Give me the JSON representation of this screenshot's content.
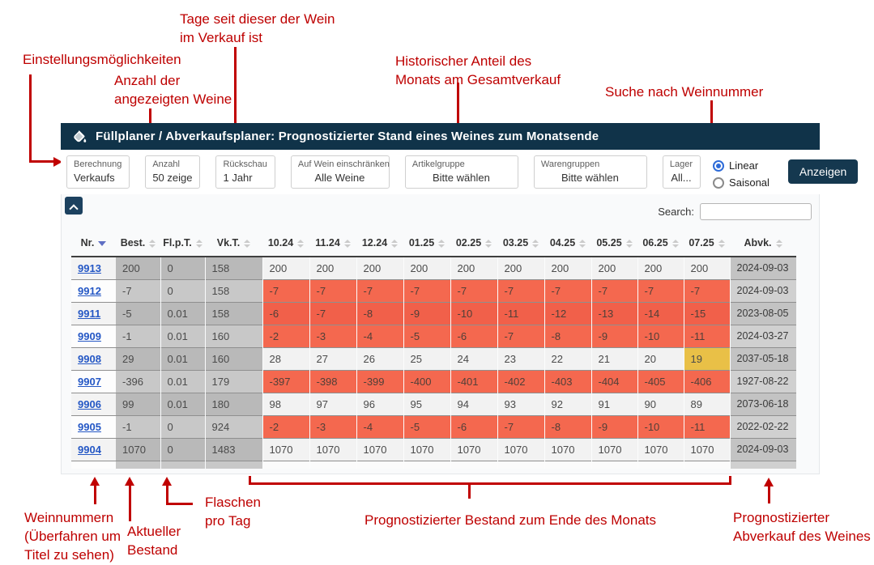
{
  "annotations": {
    "color": "#c00000",
    "tage": {
      "lines": [
        "Tage seit dieser der Wein",
        "im Verkauf ist"
      ]
    },
    "einstellungen": {
      "lines": [
        "Einstellungsmöglichkeiten"
      ]
    },
    "anzahl": {
      "lines": [
        "Anzahl der",
        "angezeigten Weine"
      ]
    },
    "historisch": {
      "lines": [
        "Historischer Anteil des",
        "Monats am Gesamtverkauf"
      ]
    },
    "suche": {
      "lines": [
        "Suche nach Weinnummer"
      ]
    },
    "weinnummern": {
      "lines": [
        "Weinnummern",
        "(Überfahren um",
        "Titel zu sehen)"
      ]
    },
    "aktueller": {
      "lines": [
        "Aktueller",
        "Bestand"
      ]
    },
    "flaschen": {
      "lines": [
        "Flaschen",
        "pro Tag"
      ]
    },
    "bestand": {
      "lines": [
        "Prognostizierter Bestand zum Ende des Monats"
      ]
    },
    "abverkauf": {
      "lines": [
        "Prognostizierter",
        "Abverkauf des Weines"
      ]
    }
  },
  "app": {
    "title": "Füllplaner / Abverkaufsplaner: Prognostizierter Stand eines Weines zum Monatsende",
    "toolbar": {
      "filters": [
        {
          "label": "Berechnung",
          "value": "Verkaufs"
        },
        {
          "label": "Anzahl",
          "value": "50 zeige"
        },
        {
          "label": "Rückschau",
          "value": "1 Jahr"
        },
        {
          "label": "Auf Wein einschränken",
          "value": "Alle Weine"
        },
        {
          "label": "Artikelgruppe",
          "value": "Bitte wählen"
        },
        {
          "label": "Warengruppen",
          "value": "Bitte wählen"
        },
        {
          "label": "Lager",
          "value": "All..."
        }
      ],
      "radios": [
        {
          "label": "Linear",
          "checked": true
        },
        {
          "label": "Saisonal",
          "checked": false
        }
      ],
      "submit_label": "Anzeigen"
    },
    "search_label": "Search:",
    "search_value": "",
    "table": {
      "columns": [
        {
          "label": "Nr.",
          "sorted": "desc"
        },
        {
          "label": "Best."
        },
        {
          "label": "Fl.p.T."
        },
        {
          "label": "Vk.T."
        },
        {
          "label": "10.24"
        },
        {
          "label": "11.24"
        },
        {
          "label": "12.24"
        },
        {
          "label": "01.25"
        },
        {
          "label": "02.25"
        },
        {
          "label": "03.25"
        },
        {
          "label": "04.25"
        },
        {
          "label": "05.25"
        },
        {
          "label": "06.25"
        },
        {
          "label": "07.25"
        },
        {
          "label": "Abvk."
        }
      ],
      "rows": [
        {
          "nr": "9913",
          "best": "200",
          "flpt": "0",
          "vkt": "158",
          "cells": [
            [
              "200",
              ""
            ],
            [
              "200",
              ""
            ],
            [
              "200",
              ""
            ],
            [
              "200",
              ""
            ],
            [
              "200",
              ""
            ],
            [
              "200",
              ""
            ],
            [
              "200",
              ""
            ],
            [
              "200",
              ""
            ],
            [
              "200",
              ""
            ],
            [
              "200",
              ""
            ]
          ],
          "abvk": "2024-09-03"
        },
        {
          "nr": "9912",
          "best": "-7",
          "flpt": "0",
          "vkt": "158",
          "cells": [
            [
              "-7",
              "o"
            ],
            [
              "-7",
              "o"
            ],
            [
              "-7",
              "o"
            ],
            [
              "-7",
              "o"
            ],
            [
              "-7",
              "o"
            ],
            [
              "-7",
              "o"
            ],
            [
              "-7",
              "o"
            ],
            [
              "-7",
              "o"
            ],
            [
              "-7",
              "o"
            ],
            [
              "-7",
              "o"
            ]
          ],
          "abvk": "2024-09-03"
        },
        {
          "nr": "9911",
          "best": "-5",
          "flpt": "0.01",
          "vkt": "158",
          "cells": [
            [
              "-6",
              "o"
            ],
            [
              "-7",
              "o"
            ],
            [
              "-8",
              "o"
            ],
            [
              "-9",
              "o"
            ],
            [
              "-10",
              "o"
            ],
            [
              "-11",
              "o"
            ],
            [
              "-12",
              "o"
            ],
            [
              "-13",
              "o"
            ],
            [
              "-14",
              "o"
            ],
            [
              "-15",
              "o"
            ]
          ],
          "abvk": "2023-08-05"
        },
        {
          "nr": "9909",
          "best": "-1",
          "flpt": "0.01",
          "vkt": "160",
          "cells": [
            [
              "-2",
              "o"
            ],
            [
              "-3",
              "o"
            ],
            [
              "-4",
              "o"
            ],
            [
              "-5",
              "o"
            ],
            [
              "-6",
              "o"
            ],
            [
              "-7",
              "o"
            ],
            [
              "-8",
              "o"
            ],
            [
              "-9",
              "o"
            ],
            [
              "-10",
              "o"
            ],
            [
              "-11",
              "o"
            ]
          ],
          "abvk": "2024-03-27"
        },
        {
          "nr": "9908",
          "best": "29",
          "flpt": "0.01",
          "vkt": "160",
          "cells": [
            [
              "28",
              ""
            ],
            [
              "27",
              ""
            ],
            [
              "26",
              ""
            ],
            [
              "25",
              ""
            ],
            [
              "24",
              ""
            ],
            [
              "23",
              ""
            ],
            [
              "22",
              ""
            ],
            [
              "21",
              ""
            ],
            [
              "20",
              ""
            ],
            [
              "19",
              "y"
            ]
          ],
          "abvk": "2037-05-18"
        },
        {
          "nr": "9907",
          "best": "-396",
          "flpt": "0.01",
          "vkt": "179",
          "cells": [
            [
              "-397",
              "o"
            ],
            [
              "-398",
              "o"
            ],
            [
              "-399",
              "o"
            ],
            [
              "-400",
              "o"
            ],
            [
              "-401",
              "o"
            ],
            [
              "-402",
              "o"
            ],
            [
              "-403",
              "o"
            ],
            [
              "-404",
              "o"
            ],
            [
              "-405",
              "o"
            ],
            [
              "-406",
              "o"
            ]
          ],
          "abvk": "1927-08-22"
        },
        {
          "nr": "9906",
          "best": "99",
          "flpt": "0.01",
          "vkt": "180",
          "cells": [
            [
              "98",
              ""
            ],
            [
              "97",
              ""
            ],
            [
              "96",
              ""
            ],
            [
              "95",
              ""
            ],
            [
              "94",
              ""
            ],
            [
              "93",
              ""
            ],
            [
              "92",
              ""
            ],
            [
              "91",
              ""
            ],
            [
              "90",
              ""
            ],
            [
              "89",
              ""
            ]
          ],
          "abvk": "2073-06-18"
        },
        {
          "nr": "9905",
          "best": "-1",
          "flpt": "0",
          "vkt": "924",
          "cells": [
            [
              "-2",
              "o"
            ],
            [
              "-3",
              "o"
            ],
            [
              "-4",
              "o"
            ],
            [
              "-5",
              "o"
            ],
            [
              "-6",
              "o"
            ],
            [
              "-7",
              "o"
            ],
            [
              "-8",
              "o"
            ],
            [
              "-9",
              "o"
            ],
            [
              "-10",
              "o"
            ],
            [
              "-11",
              "o"
            ]
          ],
          "abvk": "2022-02-22"
        },
        {
          "nr": "9904",
          "best": "1070",
          "flpt": "0",
          "vkt": "1483",
          "cells": [
            [
              "1070",
              ""
            ],
            [
              "1070",
              ""
            ],
            [
              "1070",
              ""
            ],
            [
              "1070",
              ""
            ],
            [
              "1070",
              ""
            ],
            [
              "1070",
              ""
            ],
            [
              "1070",
              ""
            ],
            [
              "1070",
              ""
            ],
            [
              "1070",
              ""
            ],
            [
              "1070",
              ""
            ]
          ],
          "abvk": "2024-09-03"
        }
      ]
    }
  },
  "icons": {
    "logo": "fill-drip-icon",
    "collapse": "chevron-up-icon",
    "sort": "sort-updown-icon",
    "sorted_desc": "sort-desc-icon"
  },
  "colors": {
    "header_navy": "#103349",
    "annotation_red": "#c00000",
    "negative_cell_orange": "#f2634c",
    "warning_cell_yellow": "#e9c047",
    "wine_link_blue": "#2457c5",
    "gray_column": "#bcbcbc"
  }
}
